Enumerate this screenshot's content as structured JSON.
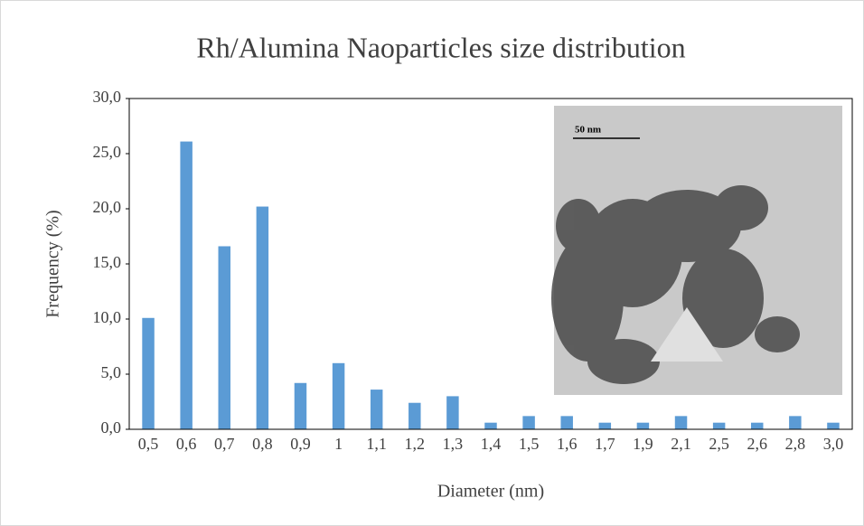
{
  "chart_data": {
    "type": "bar",
    "title": "Rh/Alumina Naoparticles size distribution",
    "x_label": "Diameter (nm)",
    "y_label": "Frequency (%)",
    "categories": [
      "0,5",
      "0,6",
      "0,7",
      "0,8",
      "0,9",
      "1",
      "1,1",
      "1,2",
      "1,3",
      "1,4",
      "1,5",
      "1,6",
      "1,7",
      "1,9",
      "2,1",
      "2,5",
      "2,6",
      "2,8",
      "3,0"
    ],
    "values": [
      10.1,
      26.1,
      16.6,
      20.2,
      4.2,
      6.0,
      3.6,
      2.4,
      3.0,
      0.6,
      1.2,
      1.2,
      0.6,
      0.6,
      1.2,
      0.6,
      0.6,
      1.2,
      0.6
    ],
    "color": "#5b9bd5",
    "ylim": [
      0,
      30
    ],
    "yticks": [
      {
        "value": 0,
        "label": "0,0"
      },
      {
        "value": 5,
        "label": "5,0"
      },
      {
        "value": 10,
        "label": "10,0"
      },
      {
        "value": 15,
        "label": "15,0"
      },
      {
        "value": 20,
        "label": "20,0"
      },
      {
        "value": 25,
        "label": "25,0"
      },
      {
        "value": 30,
        "label": "30,0"
      }
    ],
    "grid": false,
    "inset_scale_label": "50 nm"
  }
}
